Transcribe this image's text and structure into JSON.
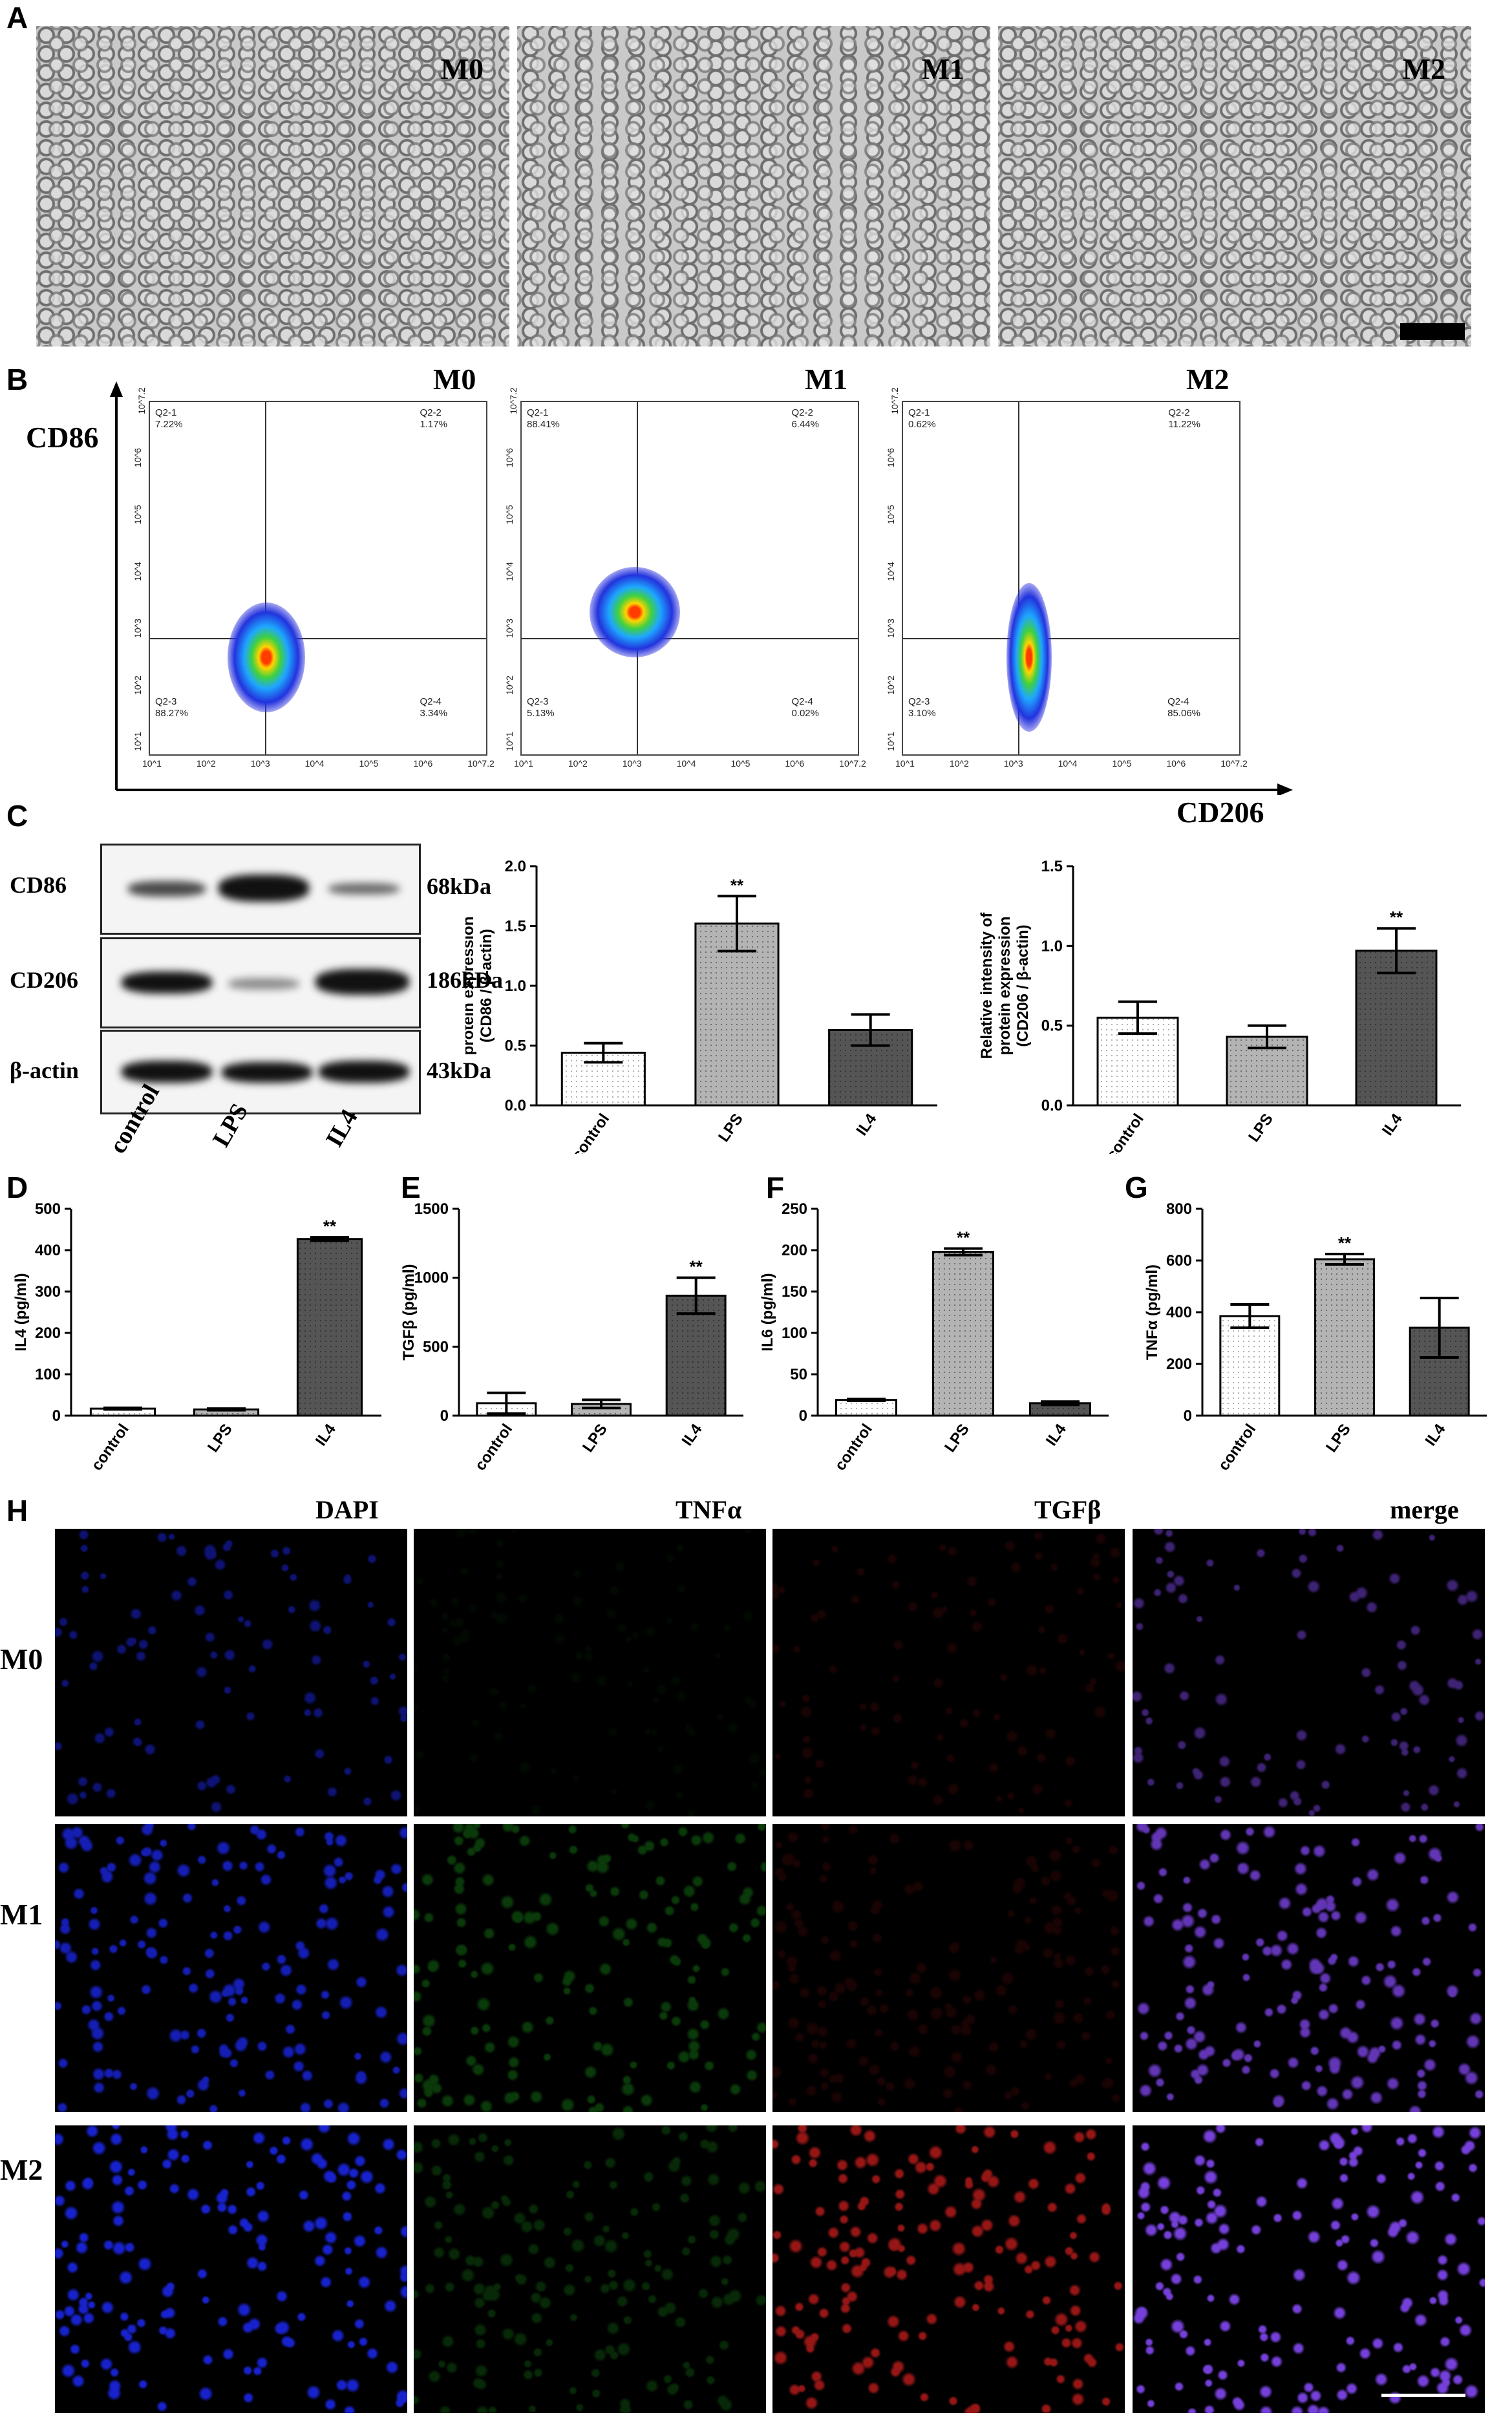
{
  "panels": {
    "A": {
      "label": "A",
      "images": [
        "M0",
        "M1",
        "M2"
      ]
    },
    "B": {
      "label": "B",
      "titles": [
        "M0",
        "M1",
        "M2"
      ],
      "y_axis": "CD86",
      "x_axis": "CD206",
      "plots": [
        {
          "q1": "Q2-1",
          "q1v": "7.22%",
          "q2": "Q2-2",
          "q2v": "1.17%",
          "q3": "Q2-3",
          "q3v": "88.27%",
          "q4": "Q2-4",
          "q4v": "3.34%"
        },
        {
          "q1": "Q2-1",
          "q1v": "88.41%",
          "q2": "Q2-2",
          "q2v": "6.44%",
          "q3": "Q2-3",
          "q3v": "5.13%",
          "q4": "Q2-4",
          "q4v": "0.02%"
        },
        {
          "q1": "Q2-1",
          "q1v": "0.62%",
          "q2": "Q2-2",
          "q2v": "11.22%",
          "q3": "Q2-3",
          "q3v": "3.10%",
          "q4": "Q2-4",
          "q4v": "85.06%"
        }
      ],
      "yticks": [
        "10^7.2",
        "10^6",
        "10^5",
        "10^4",
        "10^3",
        "10^2",
        "10^1"
      ],
      "xticks": [
        "10^1",
        "10^2",
        "10^3",
        "10^4",
        "10^5",
        "10^6",
        "10^7.2"
      ]
    },
    "C": {
      "label": "C",
      "blot_rows": [
        "CD86",
        "CD206",
        "β-actin"
      ],
      "sizes": [
        "68kDa",
        "186kDa",
        "43kDa"
      ],
      "lanes": [
        "control",
        "LPS",
        "IL4"
      ]
    },
    "D": {
      "label": "D"
    },
    "E": {
      "label": "E"
    },
    "F": {
      "label": "F"
    },
    "G": {
      "label": "G"
    },
    "H": {
      "label": "H",
      "columns": [
        "DAPI",
        "TNFα",
        "TGFβ",
        "merge"
      ],
      "rows": [
        "M0",
        "M1",
        "M2"
      ]
    }
  },
  "chart_data": [
    {
      "id": "C-CD86",
      "type": "bar",
      "categories": [
        "control",
        "LPS",
        "IL4"
      ],
      "values": [
        0.44,
        1.52,
        0.63
      ],
      "errors": [
        0.08,
        0.23,
        0.13
      ],
      "ylabel": "Relative intensity of\nprotein expression\n(CD86 / β-actin)",
      "ylim": [
        0,
        2.0
      ],
      "yticks": [
        "0.0",
        "0.5",
        "1.0",
        "1.5",
        "2.0"
      ],
      "ytick_vals": [
        0,
        0.5,
        1.0,
        1.5,
        2.0
      ],
      "sig": [
        "",
        "**",
        ""
      ]
    },
    {
      "id": "C-CD206",
      "type": "bar",
      "categories": [
        "control",
        "LPS",
        "IL4"
      ],
      "values": [
        0.55,
        0.43,
        0.97
      ],
      "errors": [
        0.1,
        0.07,
        0.14
      ],
      "ylabel": "Relative intensity of\nprotein expression\n(CD206 / β-actin)",
      "ylim": [
        0,
        1.5
      ],
      "yticks": [
        "0.0",
        "0.5",
        "1.0",
        "1.5"
      ],
      "ytick_vals": [
        0,
        0.5,
        1.0,
        1.5
      ],
      "sig": [
        "",
        "",
        "**"
      ]
    },
    {
      "id": "D",
      "type": "bar",
      "categories": [
        "control",
        "LPS",
        "IL4"
      ],
      "values": [
        17,
        15,
        427
      ],
      "errors": [
        2,
        2,
        4
      ],
      "ylabel": "IL4 (pg/ml)",
      "ylim": [
        0,
        500
      ],
      "yticks": [
        "0",
        "100",
        "200",
        "300",
        "400",
        "500"
      ],
      "ytick_vals": [
        0,
        100,
        200,
        300,
        400,
        500
      ],
      "sig": [
        "",
        "",
        "**"
      ]
    },
    {
      "id": "E",
      "type": "bar",
      "categories": [
        "control",
        "LPS",
        "IL4"
      ],
      "values": [
        90,
        85,
        870
      ],
      "errors": [
        75,
        30,
        130
      ],
      "ylabel": "TGFβ (pg/ml)",
      "ylim": [
        0,
        1500
      ],
      "yticks": [
        "0",
        "500",
        "1000",
        "1500"
      ],
      "ytick_vals": [
        0,
        500,
        1000,
        1500
      ],
      "sig": [
        "",
        "",
        "**"
      ]
    },
    {
      "id": "F",
      "type": "bar",
      "categories": [
        "control",
        "LPS",
        "IL4"
      ],
      "values": [
        19,
        198,
        15
      ],
      "errors": [
        1,
        4,
        2
      ],
      "ylabel": "IL6 (pg/ml)",
      "ylim": [
        0,
        250
      ],
      "yticks": [
        "0",
        "50",
        "100",
        "150",
        "200",
        "250"
      ],
      "ytick_vals": [
        0,
        50,
        100,
        150,
        200,
        250
      ],
      "sig": [
        "",
        "**",
        ""
      ]
    },
    {
      "id": "G",
      "type": "bar",
      "categories": [
        "control",
        "LPS",
        "IL4"
      ],
      "values": [
        385,
        605,
        340
      ],
      "errors": [
        45,
        20,
        115
      ],
      "ylabel": "TNFα (pg/ml)",
      "ylim": [
        0,
        800
      ],
      "yticks": [
        "0",
        "200",
        "400",
        "600",
        "800"
      ],
      "ytick_vals": [
        0,
        200,
        400,
        600,
        800
      ],
      "sig": [
        "",
        "**",
        ""
      ]
    }
  ],
  "colors": {
    "bar_control": "#ffffff",
    "bar_LPS": "#b4b4b4",
    "bar_IL4": "#555555",
    "dapi": "#1f2bff",
    "tnfa": "#1fa51f",
    "tgfb": "#c81e1e",
    "merge": "#8a4cff"
  }
}
